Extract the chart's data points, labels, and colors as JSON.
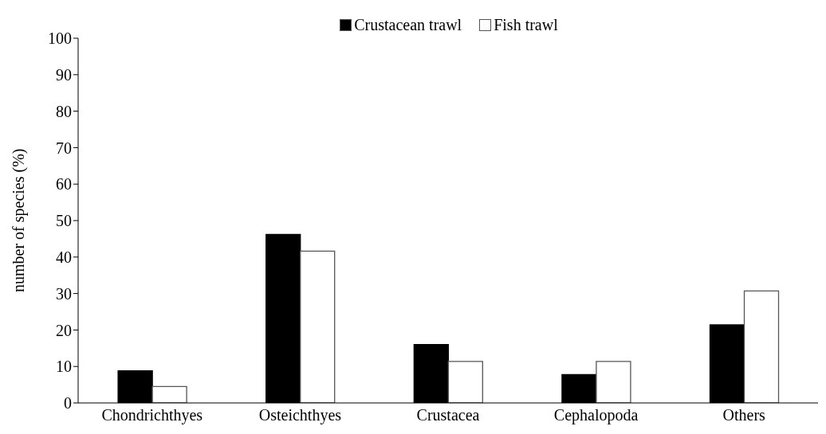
{
  "chart_data": {
    "type": "bar",
    "ylabel": "number of species  (%)",
    "categories": [
      "Chondrichthyes",
      "Osteichthyes",
      "Crustacea",
      "Cephalopoda",
      "Others"
    ],
    "series": [
      {
        "name": "Crustacean trawl",
        "color": "#000000",
        "values": [
          8.8,
          46.2,
          16.0,
          7.8,
          21.4
        ]
      },
      {
        "name": "Fish trawl",
        "color": "#ffffff",
        "values": [
          4.5,
          41.6,
          11.4,
          11.4,
          30.7
        ]
      }
    ],
    "ylim": [
      0,
      100
    ],
    "yticks": [
      0,
      10,
      20,
      30,
      40,
      50,
      60,
      70,
      80,
      90,
      100
    ],
    "grid": false,
    "legend": "top"
  }
}
